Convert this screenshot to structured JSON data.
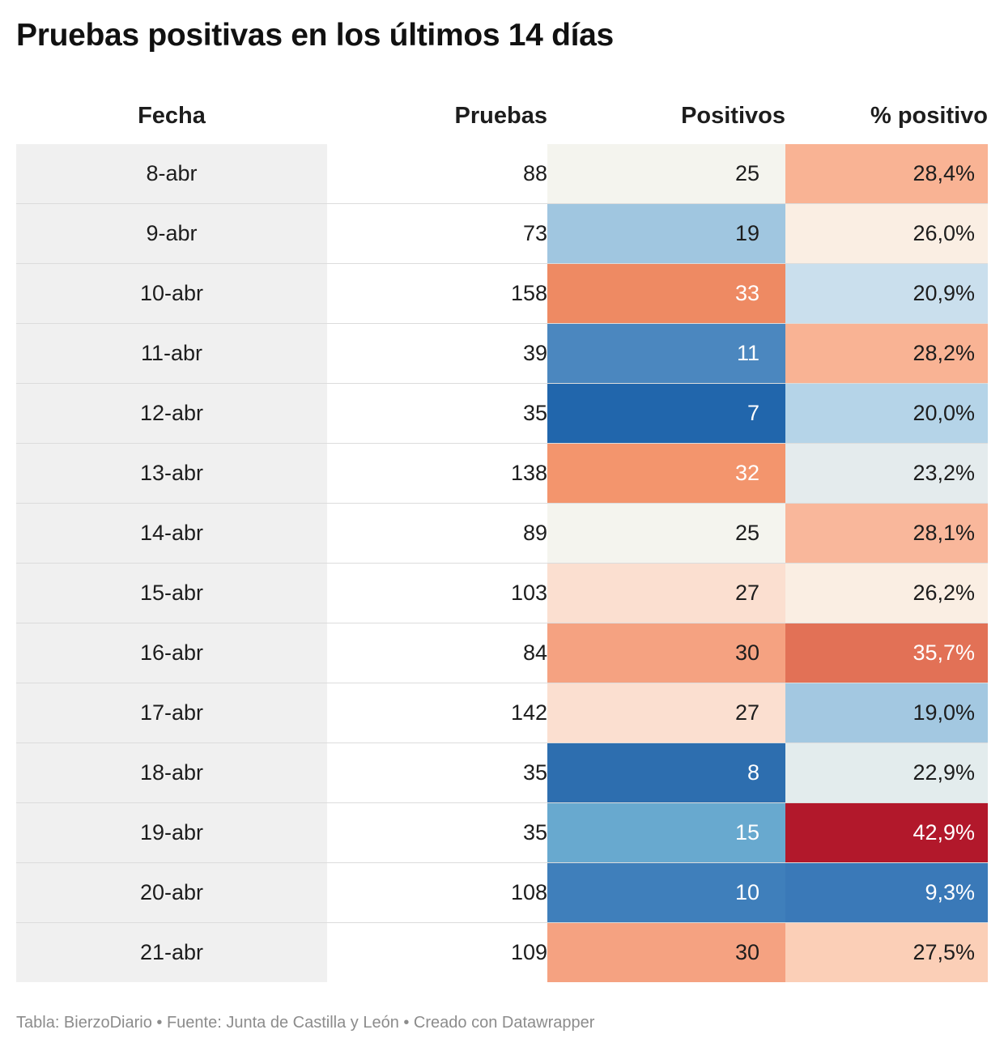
{
  "title": "Pruebas positivas en los últimos 14 días",
  "footer": "Tabla: BierzoDiario • Fuente: Junta de Castilla y León • Creado con Datawrapper",
  "chart_data": {
    "type": "table",
    "title": "Pruebas positivas en los últimos 14 días",
    "columns": [
      "Fecha",
      "Pruebas",
      "Positivos",
      "% positivo"
    ],
    "rows": [
      {
        "fecha": "8-abr",
        "pruebas": "88",
        "positivos": "25",
        "pct": "28,4%",
        "pos_color": "#f4f4ee",
        "pct_color": "#f9b394"
      },
      {
        "fecha": "9-abr",
        "pruebas": "73",
        "positivos": "19",
        "pct": "26,0%",
        "pos_color": "#a0c6e0",
        "pct_color": "#faeee3"
      },
      {
        "fecha": "10-abr",
        "pruebas": "158",
        "positivos": "33",
        "pct": "20,9%",
        "pos_color": "#ee8a63",
        "pct_color": "#cadfed"
      },
      {
        "fecha": "11-abr",
        "pruebas": "39",
        "positivos": "11",
        "pct": "28,2%",
        "pos_color": "#4b87bf",
        "pct_color": "#f9b394"
      },
      {
        "fecha": "12-abr",
        "pruebas": "35",
        "positivos": "7",
        "pct": "20,0%",
        "pos_color": "#2166ac",
        "pct_color": "#b5d4e8"
      },
      {
        "fecha": "13-abr",
        "pruebas": "138",
        "positivos": "32",
        "pct": "23,2%",
        "pos_color": "#f3956d",
        "pct_color": "#e4ebed"
      },
      {
        "fecha": "14-abr",
        "pruebas": "89",
        "positivos": "25",
        "pct": "28,1%",
        "pos_color": "#f4f4ee",
        "pct_color": "#f9b79b"
      },
      {
        "fecha": "15-abr",
        "pruebas": "103",
        "positivos": "27",
        "pct": "26,2%",
        "pos_color": "#fbdfd0",
        "pct_color": "#faeee3"
      },
      {
        "fecha": "16-abr",
        "pruebas": "84",
        "positivos": "30",
        "pct": "35,7%",
        "pos_color": "#f5a281",
        "pct_color": "#e27156"
      },
      {
        "fecha": "17-abr",
        "pruebas": "142",
        "positivos": "27",
        "pct": "19,0%",
        "pos_color": "#fbdfd0",
        "pct_color": "#a3c8e1"
      },
      {
        "fecha": "18-abr",
        "pruebas": "35",
        "positivos": "8",
        "pct": "22,9%",
        "pos_color": "#2d6eaf",
        "pct_color": "#e3eced"
      },
      {
        "fecha": "19-abr",
        "pruebas": "35",
        "positivos": "15",
        "pct": "42,9%",
        "pos_color": "#68a9cf",
        "pct_color": "#b2182b"
      },
      {
        "fecha": "20-abr",
        "pruebas": "108",
        "positivos": "10",
        "pct": "9,3%",
        "pos_color": "#3f7fbb",
        "pct_color": "#3a79b8"
      },
      {
        "fecha": "21-abr",
        "pruebas": "109",
        "positivos": "30",
        "pct": "27,5%",
        "pos_color": "#f5a281",
        "pct_color": "#fbcfb7"
      }
    ]
  }
}
